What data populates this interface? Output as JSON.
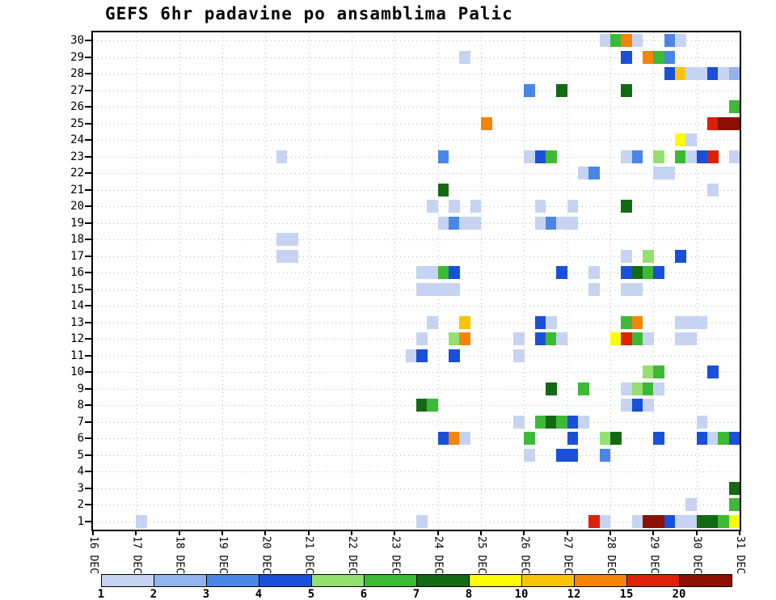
{
  "colors": {
    "background": "#ffffff",
    "frame": "#000000",
    "grid": "#b9b9b9"
  },
  "chart_data": {
    "type": "heatmap",
    "title": "GEFS 6hr padavine po ansamblima Palic",
    "x_axis": {
      "labels": [
        "16 DEC",
        "17 DEC",
        "18 DEC",
        "19 DEC",
        "20 DEC",
        "21 DEC",
        "22 DEC",
        "23 DEC",
        "24 DEC",
        "25 DEC",
        "26 DEC",
        "27 DEC",
        "28 DEC",
        "29 DEC",
        "30 DEC",
        "31 DEC"
      ],
      "cols_per_day": 4,
      "total_cols": 60
    },
    "y_axis": {
      "members": [
        1,
        2,
        3,
        4,
        5,
        6,
        7,
        8,
        9,
        10,
        11,
        12,
        13,
        14,
        15,
        16,
        17,
        18,
        19,
        20,
        21,
        22,
        23,
        24,
        25,
        26,
        27,
        28,
        29,
        30
      ]
    },
    "legend": {
      "values": [
        1,
        2,
        3,
        4,
        5,
        6,
        7,
        8,
        10,
        12,
        15,
        20
      ],
      "colors": [
        "#c6d4f2",
        "#92b4ec",
        "#4b85e6",
        "#1a50d8",
        "#95df70",
        "#3cba35",
        "#146914",
        "#fbfb08",
        "#f9c408",
        "#f58408",
        "#dd2008",
        "#8c1104"
      ]
    },
    "cells": [
      [
        30,
        47,
        1
      ],
      [
        30,
        48,
        6
      ],
      [
        30,
        49,
        12
      ],
      [
        30,
        50,
        1
      ],
      [
        30,
        53,
        3
      ],
      [
        30,
        54,
        1
      ],
      [
        29,
        34,
        1
      ],
      [
        29,
        49,
        4
      ],
      [
        29,
        51,
        12
      ],
      [
        29,
        52,
        6
      ],
      [
        29,
        53,
        3
      ],
      [
        28,
        53,
        4
      ],
      [
        28,
        54,
        10
      ],
      [
        28,
        55,
        1
      ],
      [
        28,
        56,
        1
      ],
      [
        28,
        57,
        4
      ],
      [
        28,
        58,
        1
      ],
      [
        28,
        59,
        2
      ],
      [
        27,
        40,
        3
      ],
      [
        27,
        43,
        7
      ],
      [
        27,
        49,
        7
      ],
      [
        26,
        59,
        6
      ],
      [
        25,
        36,
        12
      ],
      [
        25,
        57,
        15
      ],
      [
        25,
        58,
        20
      ],
      [
        25,
        59,
        20
      ],
      [
        24,
        54,
        8
      ],
      [
        24,
        55,
        1
      ],
      [
        23,
        17,
        1
      ],
      [
        23,
        32,
        3
      ],
      [
        23,
        40,
        1
      ],
      [
        23,
        41,
        4
      ],
      [
        23,
        42,
        6
      ],
      [
        23,
        49,
        1
      ],
      [
        23,
        50,
        3
      ],
      [
        23,
        52,
        5
      ],
      [
        23,
        54,
        6
      ],
      [
        23,
        55,
        1
      ],
      [
        23,
        56,
        4
      ],
      [
        23,
        57,
        15
      ],
      [
        23,
        59,
        1
      ],
      [
        22,
        45,
        1
      ],
      [
        22,
        46,
        3
      ],
      [
        22,
        52,
        1
      ],
      [
        22,
        53,
        1
      ],
      [
        21,
        32,
        7
      ],
      [
        21,
        57,
        1
      ],
      [
        20,
        31,
        1
      ],
      [
        20,
        33,
        1
      ],
      [
        20,
        35,
        1
      ],
      [
        20,
        41,
        1
      ],
      [
        20,
        44,
        1
      ],
      [
        20,
        49,
        7
      ],
      [
        19,
        32,
        1
      ],
      [
        19,
        33,
        3
      ],
      [
        19,
        34,
        1
      ],
      [
        19,
        35,
        1
      ],
      [
        19,
        41,
        1
      ],
      [
        19,
        42,
        3
      ],
      [
        19,
        43,
        1
      ],
      [
        19,
        44,
        1
      ],
      [
        18,
        17,
        1
      ],
      [
        18,
        18,
        1
      ],
      [
        17,
        17,
        1
      ],
      [
        17,
        18,
        1
      ],
      [
        17,
        49,
        1
      ],
      [
        17,
        51,
        5
      ],
      [
        17,
        54,
        4
      ],
      [
        16,
        30,
        1
      ],
      [
        16,
        31,
        1
      ],
      [
        16,
        32,
        6
      ],
      [
        16,
        33,
        4
      ],
      [
        16,
        43,
        4
      ],
      [
        16,
        46,
        1
      ],
      [
        16,
        49,
        4
      ],
      [
        16,
        50,
        7
      ],
      [
        16,
        51,
        6
      ],
      [
        16,
        52,
        4
      ],
      [
        15,
        30,
        1
      ],
      [
        15,
        31,
        1
      ],
      [
        15,
        32,
        1
      ],
      [
        15,
        33,
        1
      ],
      [
        15,
        46,
        1
      ],
      [
        15,
        49,
        1
      ],
      [
        15,
        50,
        1
      ],
      [
        13,
        31,
        1
      ],
      [
        13,
        34,
        10
      ],
      [
        13,
        41,
        4
      ],
      [
        13,
        42,
        1
      ],
      [
        13,
        49,
        6
      ],
      [
        13,
        50,
        12
      ],
      [
        13,
        54,
        1
      ],
      [
        13,
        55,
        1
      ],
      [
        13,
        56,
        1
      ],
      [
        12,
        30,
        1
      ],
      [
        12,
        33,
        5
      ],
      [
        12,
        34,
        12
      ],
      [
        12,
        39,
        1
      ],
      [
        12,
        41,
        4
      ],
      [
        12,
        42,
        6
      ],
      [
        12,
        43,
        1
      ],
      [
        12,
        48,
        8
      ],
      [
        12,
        49,
        15
      ],
      [
        12,
        50,
        6
      ],
      [
        12,
        51,
        1
      ],
      [
        12,
        54,
        1
      ],
      [
        12,
        55,
        1
      ],
      [
        11,
        29,
        1
      ],
      [
        11,
        30,
        4
      ],
      [
        11,
        33,
        4
      ],
      [
        11,
        39,
        1
      ],
      [
        10,
        51,
        5
      ],
      [
        10,
        52,
        6
      ],
      [
        10,
        57,
        4
      ],
      [
        9,
        42,
        7
      ],
      [
        9,
        45,
        6
      ],
      [
        9,
        49,
        1
      ],
      [
        9,
        50,
        5
      ],
      [
        9,
        51,
        6
      ],
      [
        9,
        52,
        1
      ],
      [
        8,
        30,
        7
      ],
      [
        8,
        31,
        6
      ],
      [
        8,
        49,
        1
      ],
      [
        8,
        50,
        4
      ],
      [
        8,
        51,
        1
      ],
      [
        7,
        39,
        1
      ],
      [
        7,
        41,
        6
      ],
      [
        7,
        42,
        7
      ],
      [
        7,
        43,
        6
      ],
      [
        7,
        44,
        4
      ],
      [
        7,
        45,
        1
      ],
      [
        7,
        56,
        1
      ],
      [
        6,
        32,
        4
      ],
      [
        6,
        33,
        12
      ],
      [
        6,
        34,
        1
      ],
      [
        6,
        40,
        6
      ],
      [
        6,
        44,
        4
      ],
      [
        6,
        47,
        5
      ],
      [
        6,
        48,
        7
      ],
      [
        6,
        52,
        4
      ],
      [
        6,
        56,
        4
      ],
      [
        6,
        57,
        1
      ],
      [
        6,
        58,
        6
      ],
      [
        6,
        59,
        4
      ],
      [
        5,
        40,
        1
      ],
      [
        5,
        43,
        4
      ],
      [
        5,
        44,
        4
      ],
      [
        5,
        47,
        3
      ],
      [
        3,
        59,
        7
      ],
      [
        2,
        55,
        1
      ],
      [
        2,
        59,
        6
      ],
      [
        1,
        4,
        1
      ],
      [
        1,
        30,
        1
      ],
      [
        1,
        46,
        15
      ],
      [
        1,
        47,
        1
      ],
      [
        1,
        50,
        1
      ],
      [
        1,
        51,
        20
      ],
      [
        1,
        52,
        20
      ],
      [
        1,
        53,
        4
      ],
      [
        1,
        54,
        1
      ],
      [
        1,
        55,
        1
      ],
      [
        1,
        56,
        7
      ],
      [
        1,
        57,
        7
      ],
      [
        1,
        58,
        6
      ],
      [
        1,
        59,
        8
      ]
    ]
  }
}
